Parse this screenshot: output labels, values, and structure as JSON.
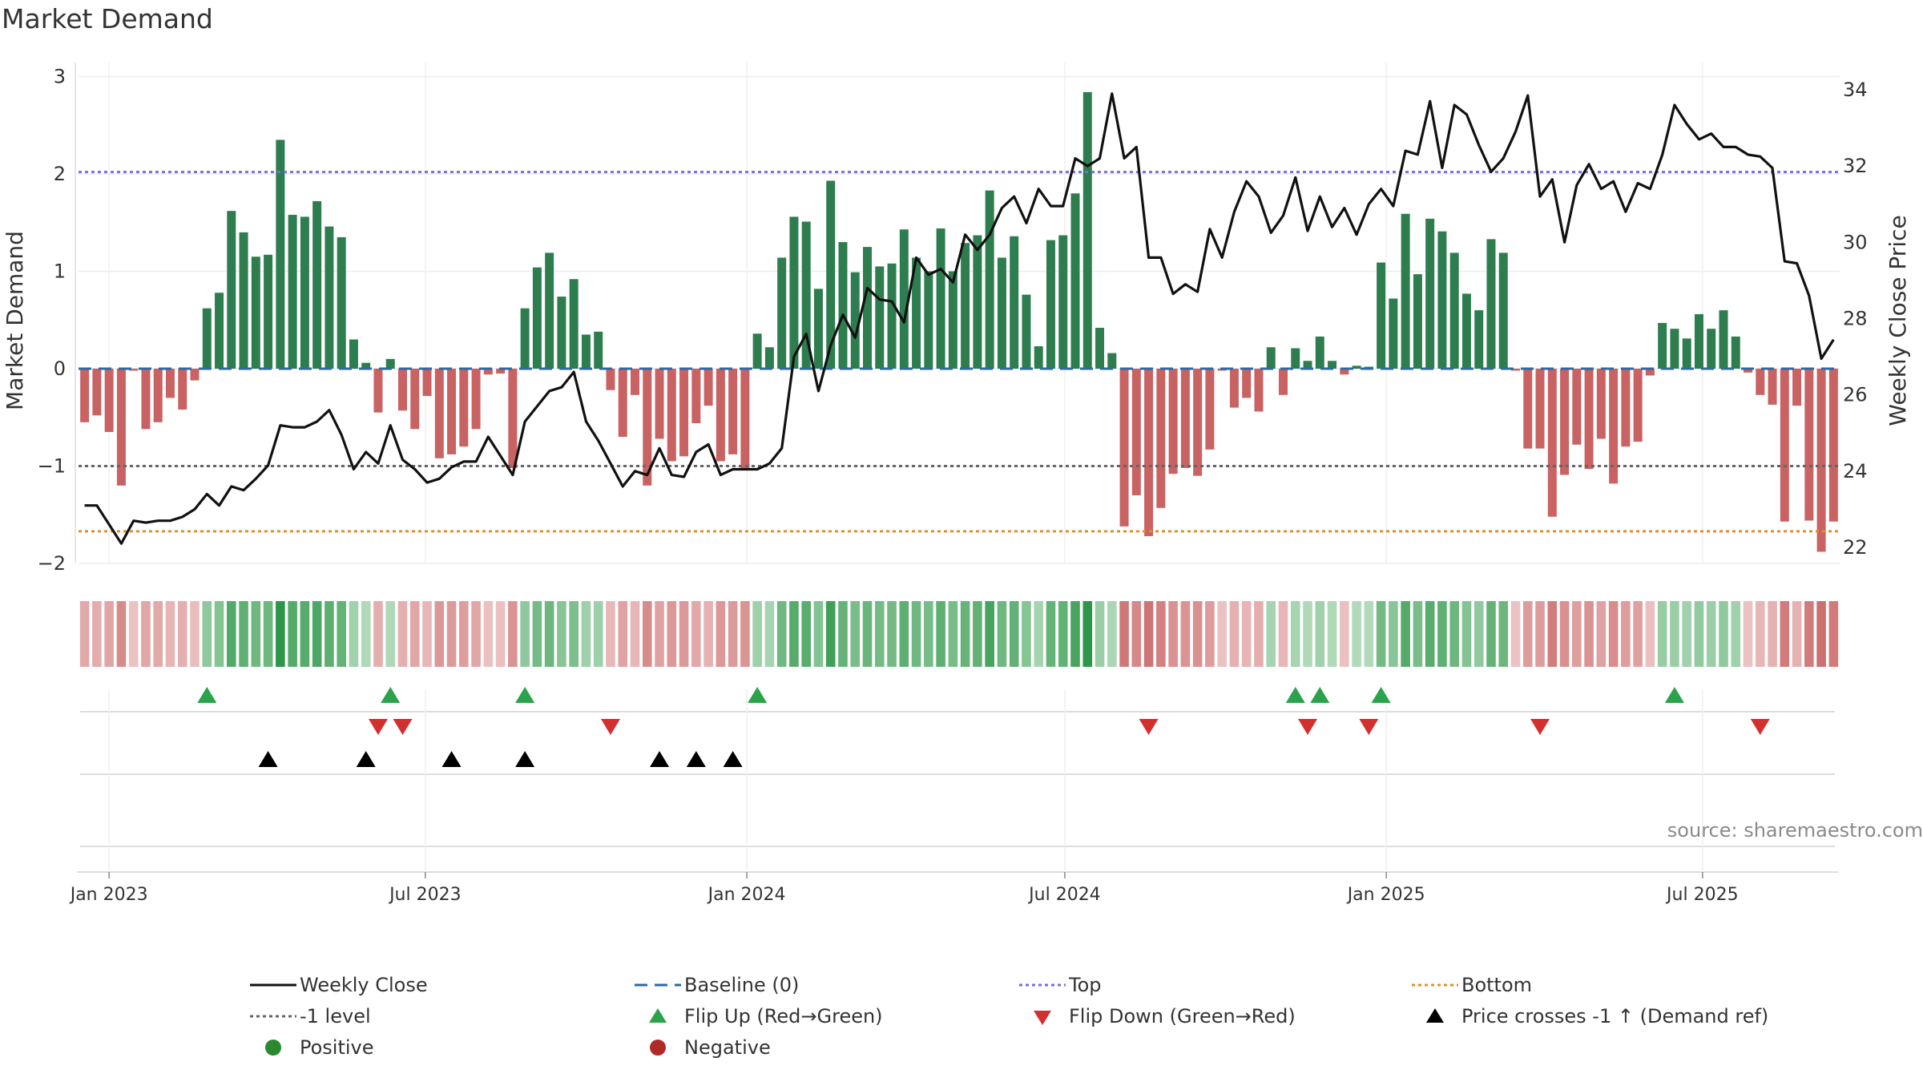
{
  "title": "Market Demand",
  "source": "source: sharemaestro.com",
  "colors": {
    "positive": "#2e7d4f",
    "negative": "#c96262",
    "close": "#111111",
    "baseline": "#2b6aa6",
    "top": "#7b6fd6",
    "minus1": "#666666",
    "bottom": "#e0902a",
    "flip_up": "#2ba24c",
    "flip_down": "#d32f2f",
    "cross": "#000000",
    "positive_dot": "#2b8a2f",
    "negative_dot": "#b02a2a"
  },
  "chart_data": {
    "type": "bar+line",
    "title": "Market Demand",
    "ylabel_left": "Market Demand",
    "ylabel_right": "Weekly Close Price",
    "ylim_left": [
      -2.05,
      3.0
    ],
    "ylim_right": [
      21.8,
      34.4
    ],
    "yticks_left": [
      "3",
      "2",
      "1",
      "0",
      "−1",
      "−2"
    ],
    "yticks_right": [
      "34",
      "32",
      "30",
      "28",
      "26",
      "24",
      "22"
    ],
    "x_start": "2022-12-18",
    "x_step_days": 7,
    "xticks": [
      {
        "label": "Jan 2023",
        "date": "2023-01-01"
      },
      {
        "label": "Jul 2023",
        "date": "2023-07-01"
      },
      {
        "label": "Jan 2024",
        "date": "2024-01-01"
      },
      {
        "label": "Jul 2024",
        "date": "2024-07-01"
      },
      {
        "label": "Jan 2025",
        "date": "2025-01-01"
      },
      {
        "label": "Jul 2025",
        "date": "2025-07-01"
      }
    ],
    "levels": {
      "top": 2.02,
      "minus1": -1.0,
      "bottom": -1.67,
      "baseline": 0
    },
    "demand": [
      -0.55,
      -0.48,
      -0.65,
      -1.2,
      -0.02,
      -0.62,
      -0.55,
      -0.3,
      -0.42,
      -0.12,
      0.62,
      0.78,
      1.62,
      1.4,
      1.15,
      1.17,
      2.35,
      1.58,
      1.56,
      1.72,
      1.46,
      1.35,
      0.3,
      0.06,
      -0.45,
      0.1,
      -0.43,
      -0.62,
      -0.28,
      -0.92,
      -0.88,
      -0.8,
      -0.62,
      -0.06,
      -0.05,
      -1.02,
      0.62,
      1.04,
      1.19,
      0.74,
      0.92,
      0.35,
      0.38,
      -0.22,
      -0.7,
      -0.27,
      -1.2,
      -0.72,
      -0.95,
      -0.9,
      -0.56,
      -0.38,
      -0.95,
      -0.88,
      -1.02,
      0.36,
      0.22,
      1.14,
      1.56,
      1.51,
      0.82,
      1.93,
      1.3,
      0.99,
      1.25,
      1.05,
      1.08,
      1.43,
      1.14,
      1.0,
      1.44,
      1.0,
      1.29,
      1.37,
      1.83,
      1.14,
      1.36,
      0.76,
      0.23,
      1.32,
      1.37,
      1.8,
      2.84,
      0.42,
      0.16,
      -1.62,
      -1.3,
      -1.72,
      -1.43,
      -1.08,
      -1.02,
      -1.1,
      -0.83,
      -0.02,
      -0.4,
      -0.3,
      -0.44,
      0.22,
      -0.27,
      0.21,
      0.08,
      0.33,
      0.08,
      -0.06,
      0.03,
      0.02,
      1.09,
      0.72,
      1.59,
      0.97,
      1.54,
      1.41,
      1.19,
      0.77,
      0.6,
      1.33,
      1.19,
      -0.02,
      -0.82,
      -0.82,
      -1.52,
      -1.09,
      -0.78,
      -1.03,
      -0.72,
      -1.18,
      -0.8,
      -0.75,
      -0.07,
      0.47,
      0.41,
      0.31,
      0.56,
      0.41,
      0.6,
      0.33,
      -0.04,
      -0.27,
      -0.37,
      -1.57,
      -0.38,
      -1.56,
      -1.88,
      -1.57
    ],
    "close": [
      23.1,
      23.1,
      22.6,
      22.1,
      22.7,
      22.65,
      22.7,
      22.7,
      22.8,
      23.0,
      23.4,
      23.1,
      23.6,
      23.5,
      23.8,
      24.15,
      25.2,
      25.15,
      25.15,
      25.3,
      25.6,
      24.95,
      24.05,
      24.5,
      24.2,
      25.2,
      24.3,
      24.05,
      23.7,
      23.8,
      24.1,
      24.25,
      24.25,
      24.9,
      24.4,
      23.9,
      25.3,
      25.7,
      26.1,
      26.2,
      26.6,
      25.3,
      24.8,
      24.2,
      23.6,
      24.0,
      23.9,
      24.6,
      23.9,
      23.85,
      24.5,
      24.7,
      23.9,
      24.05,
      24.05,
      24.05,
      24.2,
      24.6,
      27.0,
      27.6,
      26.1,
      27.3,
      28.1,
      27.5,
      28.8,
      28.5,
      28.45,
      27.9,
      29.6,
      29.15,
      29.3,
      28.95,
      30.2,
      29.8,
      30.2,
      30.9,
      31.2,
      30.5,
      31.4,
      30.95,
      30.95,
      32.2,
      32.0,
      32.2,
      33.9,
      32.2,
      32.5,
      29.6,
      29.6,
      28.65,
      28.9,
      28.7,
      30.35,
      29.6,
      30.8,
      31.6,
      31.2,
      30.25,
      30.7,
      31.7,
      30.3,
      31.2,
      30.4,
      30.9,
      30.2,
      31.0,
      31.4,
      30.95,
      32.4,
      32.3,
      33.7,
      31.95,
      33.6,
      33.35,
      32.55,
      31.85,
      32.2,
      32.9,
      33.85,
      31.2,
      31.65,
      30.0,
      31.5,
      32.05,
      31.4,
      31.6,
      30.8,
      31.55,
      31.4,
      32.3,
      33.6,
      33.1,
      32.7,
      32.85,
      32.5,
      32.5,
      32.3,
      32.25,
      31.95,
      29.5,
      29.45,
      28.6,
      26.95,
      27.45
    ],
    "flip_up_idx": [
      10,
      25,
      36,
      55,
      99,
      101,
      106,
      130
    ],
    "flip_down_idx": [
      24,
      26,
      43,
      87,
      100,
      105,
      119,
      137
    ],
    "cross_idx": [
      15,
      23,
      30,
      36,
      47,
      50,
      53
    ]
  },
  "legend": [
    {
      "key": "close",
      "label": "Weekly Close"
    },
    {
      "key": "baseline",
      "label": "Baseline (0)"
    },
    {
      "key": "top",
      "label": "Top"
    },
    {
      "key": "bottom",
      "label": "Bottom"
    },
    {
      "key": "minus1",
      "label": "-1 level"
    },
    {
      "key": "flip_up",
      "label": "Flip Up (Red→Green)"
    },
    {
      "key": "flip_down",
      "label": "Flip Down (Green→Red)"
    },
    {
      "key": "cross",
      "label": "Price crosses -1 ↑ (Demand ref)"
    },
    {
      "key": "positive_dot",
      "label": "Positive"
    },
    {
      "key": "negative_dot",
      "label": "Negative"
    }
  ]
}
